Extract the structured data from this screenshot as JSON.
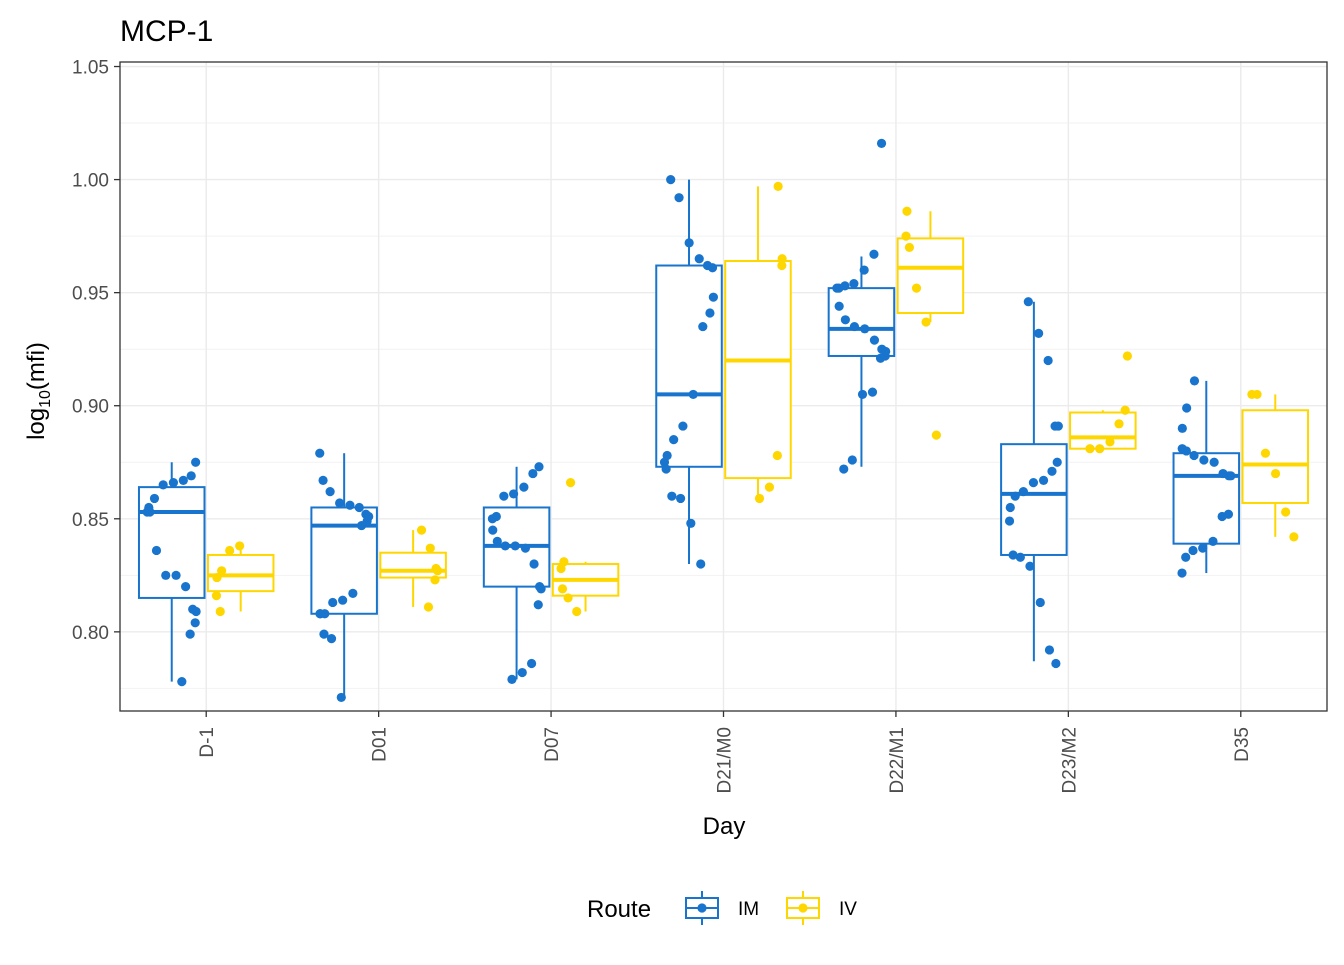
{
  "chart_data": {
    "type": "boxplot",
    "title": "MCP-1",
    "xlabel": "Day",
    "ylabel": {
      "base": "log",
      "sub": "10",
      "rest": "(mfi)"
    },
    "ylim": [
      0.765,
      1.052
    ],
    "yticks": [
      0.8,
      0.85,
      0.9,
      0.95,
      1.0,
      1.05
    ],
    "ytick_labels": [
      "0.80",
      "0.85",
      "0.90",
      "0.95",
      "1.00",
      "1.05"
    ],
    "categories": [
      "D-1",
      "D01",
      "D07",
      "D21/M0",
      "D22/M1",
      "D23/M2",
      "D35"
    ],
    "grid": true,
    "legend": {
      "title": "Route",
      "position": "bottom"
    },
    "series": [
      {
        "name": "IM",
        "color": "#1874cd",
        "boxes": [
          {
            "q1": 0.815,
            "median": 0.853,
            "q3": 0.864,
            "lower": 0.778,
            "upper": 0.875
          },
          {
            "q1": 0.808,
            "median": 0.847,
            "q3": 0.855,
            "lower": 0.771,
            "upper": 0.879
          },
          {
            "q1": 0.82,
            "median": 0.838,
            "q3": 0.855,
            "lower": 0.779,
            "upper": 0.873
          },
          {
            "q1": 0.873,
            "median": 0.905,
            "q3": 0.962,
            "lower": 0.83,
            "upper": 1.0
          },
          {
            "q1": 0.922,
            "median": 0.934,
            "q3": 0.952,
            "lower": 0.873,
            "upper": 0.966
          },
          {
            "q1": 0.834,
            "median": 0.861,
            "q3": 0.883,
            "lower": 0.787,
            "upper": 0.946
          },
          {
            "q1": 0.839,
            "median": 0.869,
            "q3": 0.879,
            "lower": 0.826,
            "upper": 0.911
          }
        ],
        "points": [
          [
            0.778,
            0.799,
            0.804,
            0.809,
            0.81,
            0.82,
            0.825,
            0.825,
            0.836,
            0.853,
            0.853,
            0.855,
            0.859,
            0.865,
            0.866,
            0.867,
            0.869,
            0.875
          ],
          [
            0.771,
            0.797,
            0.799,
            0.808,
            0.808,
            0.808,
            0.813,
            0.814,
            0.817,
            0.847,
            0.849,
            0.851,
            0.852,
            0.855,
            0.856,
            0.857,
            0.862,
            0.867,
            0.879
          ],
          [
            0.779,
            0.782,
            0.786,
            0.812,
            0.819,
            0.82,
            0.83,
            0.837,
            0.838,
            0.838,
            0.84,
            0.845,
            0.85,
            0.851,
            0.86,
            0.861,
            0.864,
            0.87,
            0.873
          ],
          [
            0.83,
            0.848,
            0.859,
            0.86,
            0.872,
            0.875,
            0.878,
            0.885,
            0.891,
            0.905,
            0.935,
            0.941,
            0.948,
            0.961,
            0.962,
            0.965,
            0.972,
            0.992,
            1.0
          ],
          [
            0.872,
            0.876,
            0.905,
            0.906,
            0.921,
            0.922,
            0.924,
            0.925,
            0.929,
            0.934,
            0.935,
            0.938,
            0.944,
            0.952,
            0.952,
            0.953,
            0.954,
            0.96,
            0.967,
            1.016
          ],
          [
            0.786,
            0.792,
            0.813,
            0.829,
            0.833,
            0.834,
            0.849,
            0.855,
            0.86,
            0.862,
            0.866,
            0.867,
            0.871,
            0.875,
            0.891,
            0.891,
            0.92,
            0.932,
            0.946
          ],
          [
            0.826,
            0.833,
            0.836,
            0.837,
            0.84,
            0.851,
            0.852,
            0.869,
            0.869,
            0.87,
            0.875,
            0.876,
            0.878,
            0.88,
            0.881,
            0.89,
            0.899,
            0.911
          ]
        ]
      },
      {
        "name": "IV",
        "color": "#ffd700",
        "boxes": [
          {
            "q1": 0.818,
            "median": 0.825,
            "q3": 0.834,
            "lower": 0.809,
            "upper": 0.838
          },
          {
            "q1": 0.824,
            "median": 0.827,
            "q3": 0.835,
            "lower": 0.811,
            "upper": 0.845
          },
          {
            "q1": 0.816,
            "median": 0.823,
            "q3": 0.83,
            "lower": 0.809,
            "upper": 0.831
          },
          {
            "q1": 0.868,
            "median": 0.92,
            "q3": 0.964,
            "lower": 0.859,
            "upper": 0.997
          },
          {
            "q1": 0.941,
            "median": 0.961,
            "q3": 0.974,
            "lower": 0.937,
            "upper": 0.986
          },
          {
            "q1": 0.881,
            "median": 0.886,
            "q3": 0.897,
            "lower": 0.881,
            "upper": 0.898
          },
          {
            "q1": 0.857,
            "median": 0.874,
            "q3": 0.898,
            "lower": 0.842,
            "upper": 0.905
          }
        ],
        "points": [
          [
            0.809,
            0.816,
            0.824,
            0.827,
            0.836,
            0.838
          ],
          [
            0.811,
            0.823,
            0.827,
            0.828,
            0.837,
            0.845
          ],
          [
            0.809,
            0.815,
            0.819,
            0.828,
            0.831,
            0.866
          ],
          [
            0.859,
            0.864,
            0.878,
            0.962,
            0.965,
            0.997
          ],
          [
            0.887,
            0.937,
            0.952,
            0.97,
            0.975,
            0.986
          ],
          [
            0.881,
            0.881,
            0.884,
            0.892,
            0.898,
            0.922
          ],
          [
            0.842,
            0.853,
            0.87,
            0.879,
            0.905,
            0.905
          ]
        ]
      }
    ]
  }
}
